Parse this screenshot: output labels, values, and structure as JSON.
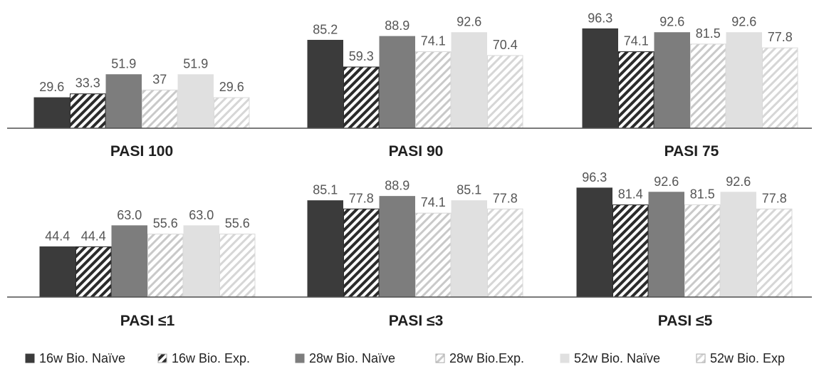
{
  "chart_data": {
    "type": "bar",
    "legend_position": "bottom",
    "legend": [
      {
        "name": "16w Bio. Naïve",
        "style": "solid",
        "color": "#3b3b3b"
      },
      {
        "name": "16w Bio. Exp.",
        "style": "hatch",
        "color": "#2b2b2b"
      },
      {
        "name": "28w Bio. Naïve",
        "style": "solid",
        "color": "#7d7d7d"
      },
      {
        "name": "28w Bio.Exp.",
        "style": "hatch",
        "color": "#c9c9c9"
      },
      {
        "name": "52w Bio. Naïve",
        "style": "solid",
        "color": "#e0e0e0"
      },
      {
        "name": "52w Bio. Exp",
        "style": "hatch",
        "color": "#d6d6d6"
      }
    ],
    "panels": [
      {
        "title": "PASI 100",
        "values": [
          29.6,
          33.3,
          51.9,
          37,
          51.9,
          29.6
        ],
        "labels": [
          "29.6",
          "33.3",
          "51.9",
          "37",
          "51.9",
          "29.6"
        ]
      },
      {
        "title": "PASI 90",
        "values": [
          85.2,
          59.3,
          88.9,
          74.1,
          92.6,
          70.4
        ],
        "labels": [
          "85.2",
          "59.3",
          "88.9",
          "74.1",
          "92.6",
          "70.4"
        ]
      },
      {
        "title": "PASI 75",
        "values": [
          96.3,
          74.1,
          92.6,
          81.5,
          92.6,
          77.8
        ],
        "labels": [
          "96.3",
          "74.1",
          "92.6",
          "81.5",
          "92.6",
          "77.8"
        ]
      },
      {
        "title": "PASI ≤1",
        "values": [
          44.4,
          44.4,
          63.0,
          55.6,
          63.0,
          55.6
        ],
        "labels": [
          "44.4",
          "44.4",
          "63.0",
          "55.6",
          "63.0",
          "55.6"
        ]
      },
      {
        "title": "PASI ≤3",
        "values": [
          85.1,
          77.8,
          88.9,
          74.1,
          85.1,
          77.8
        ],
        "labels": [
          "85.1",
          "77.8",
          "88.9",
          "74.1",
          "85.1",
          "77.8"
        ]
      },
      {
        "title": "PASI ≤5",
        "values": [
          96.3,
          81.4,
          92.6,
          81.5,
          92.6,
          77.8
        ],
        "labels": [
          "96.3",
          "81.4",
          "92.6",
          "81.5",
          "92.6",
          "77.8"
        ]
      }
    ],
    "ylim": [
      0,
      100
    ],
    "grid": false
  }
}
